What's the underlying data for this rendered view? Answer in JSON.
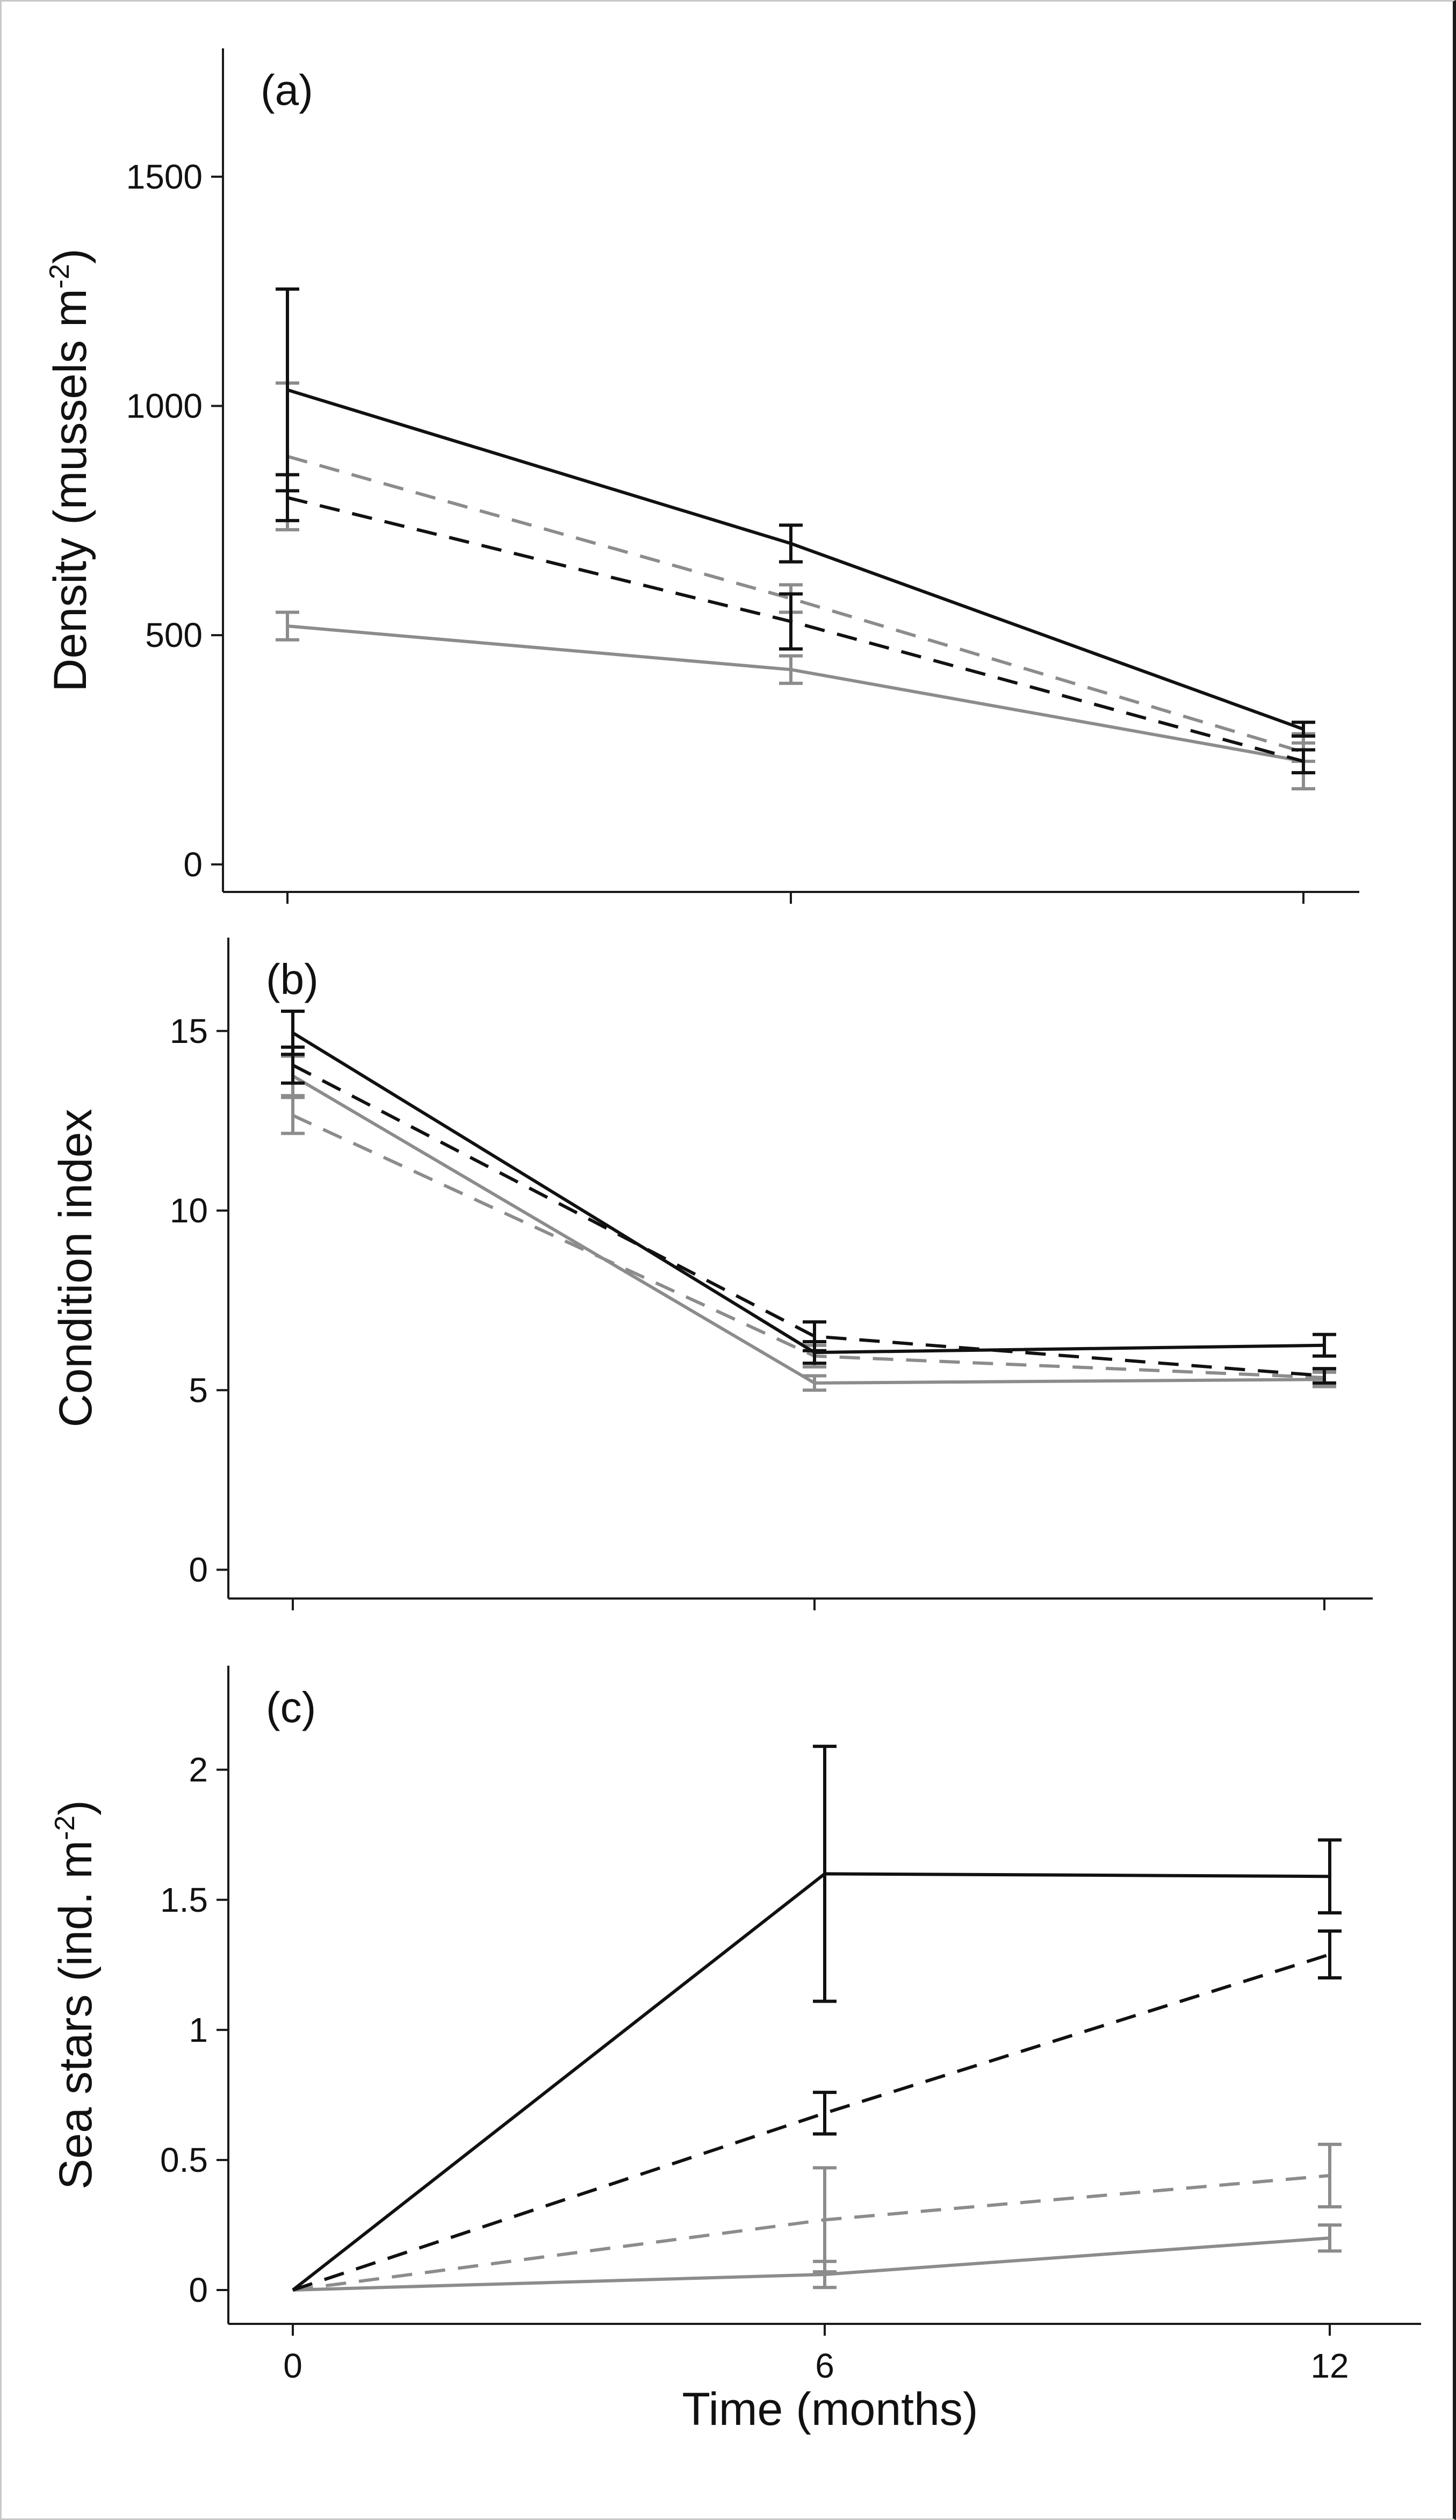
{
  "figure": {
    "x_title": "Time (months)",
    "x_ticks": [
      "0",
      "6",
      "12"
    ]
  },
  "series_styles": [
    {
      "name": "black solid",
      "color": "#111111",
      "dashed": false
    },
    {
      "name": "black dashed",
      "color": "#111111",
      "dashed": true
    },
    {
      "name": "grey dashed",
      "color": "#8c8c8c",
      "dashed": true
    },
    {
      "name": "grey solid",
      "color": "#8c8c8c",
      "dashed": false
    }
  ],
  "chart_data": [
    {
      "type": "line",
      "panel": "(a)",
      "ylabel": "Density (mussels m",
      "ylabel_sup": "-2",
      "ylabel_end": ")",
      "x": [
        0,
        6,
        12
      ],
      "ylim": [
        -60,
        1780
      ],
      "yticks": [
        0,
        500,
        1000,
        1500
      ],
      "ytick_labels": [
        "0",
        "500",
        "1000",
        "1500"
      ],
      "series": [
        {
          "name": "black solid",
          "values": [
            1035,
            700,
            295
          ],
          "errors": [
            220,
            40,
            15
          ]
        },
        {
          "name": "black dashed",
          "values": [
            800,
            530,
            225
          ],
          "errors": [
            50,
            60,
            25
          ]
        },
        {
          "name": "grey dashed",
          "values": [
            890,
            580,
            245
          ],
          "errors": [
            160,
            30,
            20
          ]
        },
        {
          "name": "grey solid",
          "values": [
            520,
            425,
            225
          ],
          "errors": [
            30,
            30,
            60
          ]
        }
      ]
    },
    {
      "type": "line",
      "panel": "(b)",
      "ylabel": "Condition index",
      "ylabel_sup": "",
      "ylabel_end": "",
      "x": [
        0,
        6,
        12
      ],
      "ylim": [
        -0.8,
        17.6
      ],
      "yticks": [
        0,
        5,
        10,
        15
      ],
      "ytick_labels": [
        "0",
        "5",
        "10",
        "15"
      ],
      "series": [
        {
          "name": "black solid",
          "values": [
            14.95,
            6.05,
            6.25
          ],
          "errors": [
            0.6,
            0.3,
            0.3
          ]
        },
        {
          "name": "black dashed",
          "values": [
            14.05,
            6.5,
            5.4
          ],
          "errors": [
            0.5,
            0.4,
            0.2
          ]
        },
        {
          "name": "grey dashed",
          "values": [
            12.65,
            5.95,
            5.35
          ],
          "errors": [
            0.5,
            0.3,
            0.2
          ]
        },
        {
          "name": "grey solid",
          "values": [
            13.75,
            5.2,
            5.3
          ],
          "errors": [
            0.55,
            0.2,
            0.2
          ]
        }
      ]
    },
    {
      "type": "line",
      "panel": "(c)",
      "ylabel": "Sea stars (ind. m",
      "ylabel_sup": "-2",
      "ylabel_end": ")",
      "x": [
        0,
        6,
        12
      ],
      "ylim": [
        -0.13,
        2.4
      ],
      "yticks": [
        0,
        0.5,
        1,
        1.5,
        2
      ],
      "ytick_labels": [
        "0",
        "0.5",
        "1",
        "1.5",
        "2"
      ],
      "series": [
        {
          "name": "black solid",
          "values": [
            0,
            1.6,
            1.59
          ],
          "errors": [
            0,
            0.49,
            0.14
          ]
        },
        {
          "name": "black dashed",
          "values": [
            0,
            0.68,
            1.29
          ],
          "errors": [
            0,
            0.08,
            0.09
          ]
        },
        {
          "name": "grey dashed",
          "values": [
            0,
            0.27,
            0.44
          ],
          "errors": [
            0,
            0.2,
            0.12
          ]
        },
        {
          "name": "grey solid",
          "values": [
            0,
            0.06,
            0.2
          ],
          "errors": [
            0,
            0.05,
            0.05
          ]
        }
      ]
    }
  ]
}
